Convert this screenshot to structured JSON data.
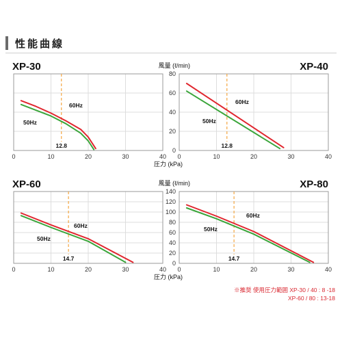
{
  "header": {
    "title": "性能曲線"
  },
  "note": {
    "line1": "※推奨 使用圧力範囲  XP-30 / 40 :  8 -18",
    "line2": "XP-60 / 80 : 13-18"
  },
  "colors": {
    "hz60": "#e0262e",
    "hz50": "#3aa53a",
    "marker": "#f4a640",
    "grid": "#dddddd",
    "frame": "#9a9a9a"
  },
  "chart_data": [
    {
      "type": "line",
      "title": "XP-30",
      "xlabel": "",
      "ylabel": "",
      "xlim": [
        0,
        40
      ],
      "ylim": [
        0,
        80
      ],
      "xticks": [
        "0",
        "10",
        "20",
        "30",
        "40"
      ],
      "yticks": [],
      "marker_x": 12.8,
      "marker_label": "12.8",
      "series": [
        {
          "name": "60Hz",
          "x": [
            2,
            6,
            10,
            14,
            18,
            20,
            22
          ],
          "y": [
            52,
            46,
            39,
            31,
            22,
            14,
            2
          ]
        },
        {
          "name": "50Hz",
          "x": [
            2,
            6,
            10,
            14,
            18,
            20,
            21.5
          ],
          "y": [
            48,
            42,
            36,
            28,
            18,
            10,
            1
          ]
        }
      ]
    },
    {
      "type": "line",
      "title": "XP-40",
      "xlabel": "圧力 (kPa)",
      "ylabel": "風量 (ℓ/min)",
      "xlim": [
        0,
        40
      ],
      "ylim": [
        0,
        80
      ],
      "xticks": [
        "0",
        "10",
        "20",
        "30",
        "40"
      ],
      "yticks": [
        "0",
        "20",
        "40",
        "60",
        "80"
      ],
      "marker_x": 12.8,
      "marker_label": "12.8",
      "series": [
        {
          "name": "60Hz",
          "x": [
            2,
            28
          ],
          "y": [
            70,
            3
          ]
        },
        {
          "name": "50Hz",
          "x": [
            2,
            27
          ],
          "y": [
            62,
            2
          ]
        }
      ]
    },
    {
      "type": "line",
      "title": "XP-60",
      "xlabel": "",
      "ylabel": "",
      "xlim": [
        0,
        40
      ],
      "ylim": [
        0,
        140
      ],
      "xticks": [
        "0",
        "10",
        "20",
        "30",
        "40"
      ],
      "yticks": [],
      "marker_x": 14.7,
      "marker_label": "14.7",
      "series": [
        {
          "name": "60Hz",
          "x": [
            2,
            10,
            20,
            32
          ],
          "y": [
            98,
            75,
            48,
            2
          ]
        },
        {
          "name": "50Hz",
          "x": [
            2,
            10,
            20,
            30
          ],
          "y": [
            93,
            70,
            43,
            2
          ]
        }
      ]
    },
    {
      "type": "line",
      "title": "XP-80",
      "xlabel": "圧力 (kPa)",
      "ylabel": "風量 (ℓ/min)",
      "xlim": [
        0,
        40
      ],
      "ylim": [
        0,
        140
      ],
      "xticks": [
        "0",
        "10",
        "20",
        "30",
        "40"
      ],
      "yticks": [
        "0",
        "20",
        "40",
        "60",
        "80",
        "100",
        "120",
        "140"
      ],
      "marker_x": 14.7,
      "marker_label": "14.7",
      "series": [
        {
          "name": "60Hz",
          "x": [
            2,
            10,
            20,
            36
          ],
          "y": [
            114,
            92,
            62,
            2
          ]
        },
        {
          "name": "50Hz",
          "x": [
            2,
            10,
            20,
            35
          ],
          "y": [
            108,
            87,
            57,
            2
          ]
        }
      ]
    }
  ]
}
